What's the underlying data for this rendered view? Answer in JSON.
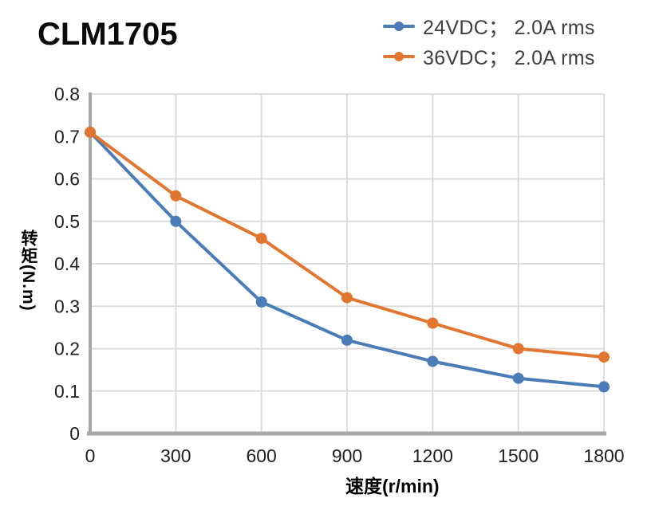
{
  "title": "CLM1705",
  "legend": {
    "items": [
      {
        "label": "24VDC； 2.0A rms",
        "color": "#4a7cb8"
      },
      {
        "label": "36VDC； 2.0A rms",
        "color": "#e0762f"
      }
    ]
  },
  "chart_data": {
    "type": "line",
    "title": "CLM1705",
    "xlabel": "速度(r/min)",
    "ylabel": "转矩(N.m)",
    "x": [
      0,
      300,
      600,
      900,
      1200,
      1500,
      1800
    ],
    "series": [
      {
        "name": "24VDC； 2.0A rms",
        "color": "#4a7cb8",
        "values": [
          0.71,
          0.5,
          0.31,
          0.22,
          0.17,
          0.13,
          0.11
        ]
      },
      {
        "name": "36VDC； 2.0A rms",
        "color": "#e0762f",
        "values": [
          0.71,
          0.56,
          0.46,
          0.32,
          0.26,
          0.2,
          0.18
        ]
      }
    ],
    "xlim": [
      0,
      1800
    ],
    "ylim": [
      0,
      0.8
    ],
    "x_tick_values": [
      0,
      300,
      600,
      900,
      1200,
      1500,
      1800
    ],
    "x_tick_labels": [
      "0",
      "300",
      "600",
      "900",
      "1200",
      "1500",
      "1800"
    ],
    "y_tick_values": [
      0,
      0.1,
      0.2,
      0.3,
      0.4,
      0.5,
      0.6,
      0.7,
      0.8
    ],
    "y_tick_labels": [
      "0",
      "0.1",
      "0.2",
      "0.3",
      "0.4",
      "0.5",
      "0.6",
      "0.7",
      "0.8"
    ],
    "grid": true,
    "legend_position": "top-right",
    "grid_color": "#d9d9d9",
    "axis_color": "#a6a6a6",
    "tick_label_color": "#1f1f1f",
    "marker": "circle"
  }
}
